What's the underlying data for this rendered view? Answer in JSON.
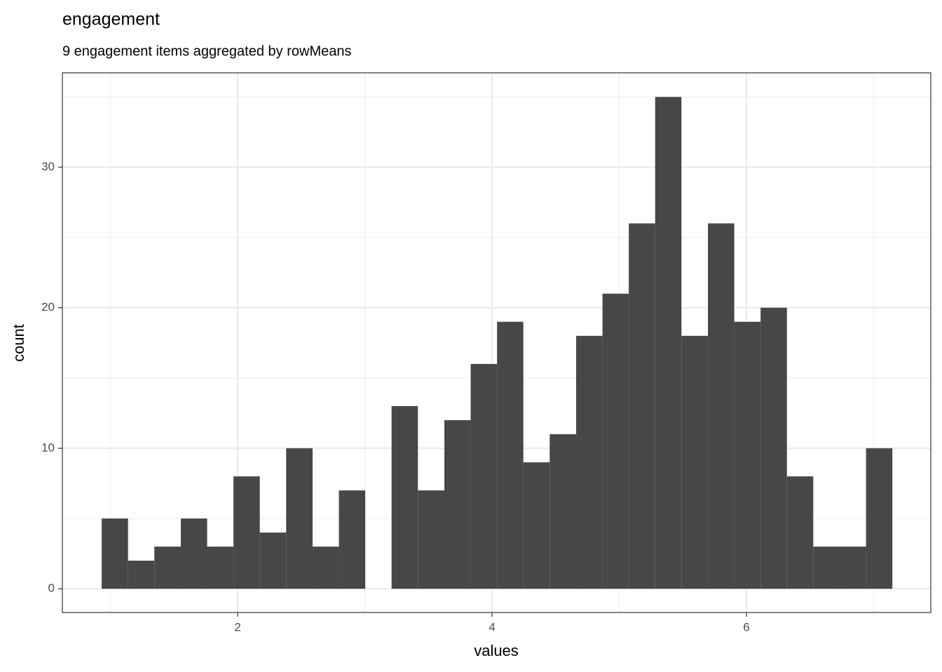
{
  "chart_data": {
    "type": "histogram",
    "title": "engagement",
    "subtitle": "9 engagement items aggregated by rowMeans",
    "x_label": "values",
    "y_label": "count",
    "bins": [
      0.931,
      1.138,
      1.345,
      1.553,
      1.76,
      1.967,
      2.174,
      2.381,
      2.589,
      2.796,
      3.003,
      3.21,
      3.417,
      3.625,
      3.832,
      4.039,
      4.246,
      4.453,
      4.661,
      4.868,
      5.075,
      5.282,
      5.489,
      5.697,
      5.904,
      6.111,
      6.318,
      6.525,
      6.733,
      6.94,
      7.147
    ],
    "counts": [
      5,
      2,
      3,
      5,
      3,
      8,
      4,
      10,
      3,
      7,
      0,
      13,
      7,
      12,
      16,
      19,
      9,
      11,
      18,
      21,
      26,
      35,
      18,
      26,
      19,
      20,
      8,
      3,
      3,
      10
    ],
    "color": "#474747",
    "xlim": [
      0.622,
      7.449
    ],
    "ylim": [
      -1.69,
      36.72
    ],
    "xticks": [
      2,
      4,
      6
    ],
    "yticks": [
      0,
      10,
      20,
      30
    ],
    "x_minor_grid": [
      1,
      3,
      5,
      7
    ],
    "y_minor_grid": [
      5,
      15,
      25,
      35
    ],
    "grid": true
  }
}
